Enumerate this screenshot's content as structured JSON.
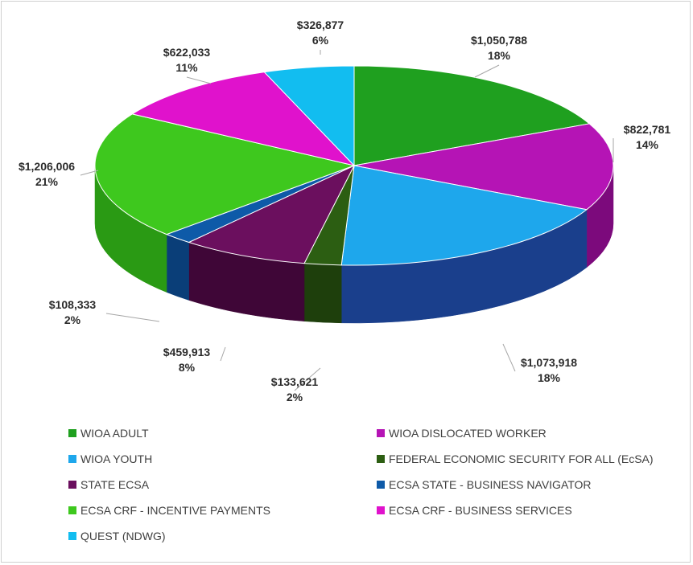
{
  "chart_data": {
    "type": "pie",
    "title": "",
    "legend_position": "bottom",
    "slices": [
      {
        "name": "WIOA ADULT",
        "value": 1050788,
        "value_label": "$1,050,788",
        "percent_label": "18%",
        "color": "#1fa01f",
        "side_color": "#137a13"
      },
      {
        "name": "WIOA DISLOCATED WORKER",
        "value": 822781,
        "value_label": "$822,781",
        "percent_label": "14%",
        "color": "#b514b5",
        "side_color": "#7c0a7c"
      },
      {
        "name": "WIOA YOUTH",
        "value": 1073918,
        "value_label": "$1,073,918",
        "percent_label": "18%",
        "color": "#1ea7ec",
        "side_color": "#1a3f8c"
      },
      {
        "name": "FEDERAL ECONOMIC SECURITY FOR ALL (EcSA)",
        "value": 133621,
        "value_label": "$133,621",
        "percent_label": "2%",
        "color": "#2c5e12",
        "side_color": "#1e3f0c"
      },
      {
        "name": "STATE ECSA",
        "value": 459913,
        "value_label": "$459,913",
        "percent_label": "8%",
        "color": "#6b0f5e",
        "side_color": "#3f0637"
      },
      {
        "name": "ECSA STATE - BUSINESS NAVIGATOR",
        "value": 108333,
        "value_label": "$108,333",
        "percent_label": "2%",
        "color": "#0e5aa8",
        "side_color": "#0a3e78"
      },
      {
        "name": "ECSA CRF - INCENTIVE PAYMENTS",
        "value": 1206006,
        "value_label": "$1,206,006",
        "percent_label": "21%",
        "color": "#3ec81e",
        "side_color": "#2a9a14"
      },
      {
        "name": "ECSA CRF - BUSINESS SERVICES",
        "value": 622033,
        "value_label": "$622,033",
        "percent_label": "11%",
        "color": "#e012cc",
        "side_color": "#a00c90"
      },
      {
        "name": "QUEST (NDWG)",
        "value": 326877,
        "value_label": "$326,877",
        "percent_label": "6%",
        "color": "#12bdf0",
        "side_color": "#0c8cb4"
      }
    ]
  }
}
